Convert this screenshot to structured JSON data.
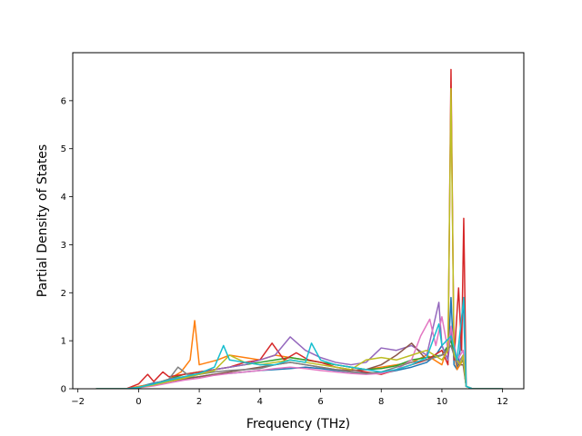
{
  "chart_data": {
    "type": "line",
    "title": "",
    "xlabel": "Frequency (THz)",
    "ylabel": "Partial Density of States",
    "xlim": [
      -2.17,
      12.7
    ],
    "ylim": [
      0,
      7.0
    ],
    "x_ticks": [
      -2,
      0,
      2,
      4,
      6,
      8,
      10,
      12
    ],
    "y_ticks": [
      0,
      1,
      2,
      3,
      4,
      5,
      6
    ],
    "grid": false,
    "legend": "none",
    "palette": [
      "#1f77b4",
      "#ff7f0e",
      "#2ca02c",
      "#d62728",
      "#9467bd",
      "#8c564b",
      "#e377c2",
      "#7f7f7f",
      "#bcbd22",
      "#17becf"
    ],
    "series": [
      {
        "color": "#1f77b4",
        "x": [
          -1.4,
          -0.4,
          0.0,
          0.5,
          1.0,
          1.5,
          2.0,
          2.5,
          3.0,
          3.5,
          4.0,
          4.5,
          5.0,
          5.5,
          6.0,
          6.5,
          7.0,
          7.5,
          8.0,
          8.5,
          9.0,
          9.5,
          9.8,
          10.0,
          10.2,
          10.3,
          10.4,
          10.5,
          10.6,
          10.7,
          10.8,
          11.0,
          12.0
        ],
        "y": [
          0,
          0,
          0.04,
          0.12,
          0.18,
          0.22,
          0.25,
          0.3,
          0.32,
          0.35,
          0.38,
          0.4,
          0.42,
          0.45,
          0.42,
          0.38,
          0.35,
          0.33,
          0.32,
          0.38,
          0.45,
          0.55,
          0.7,
          0.9,
          0.6,
          1.9,
          0.5,
          0.4,
          0.8,
          1.9,
          0.05,
          0,
          0
        ]
      },
      {
        "color": "#ff7f0e",
        "x": [
          -1.4,
          -0.4,
          0.0,
          0.5,
          1.0,
          1.4,
          1.7,
          1.85,
          2.0,
          2.3,
          2.6,
          3.0,
          3.5,
          4.0,
          4.5,
          5.0,
          5.5,
          6.0,
          6.5,
          7.0,
          7.5,
          8.0,
          8.5,
          9.0,
          9.5,
          10.0,
          10.3,
          10.5,
          10.7,
          10.8,
          11.0,
          12.0
        ],
        "y": [
          0,
          0,
          0.05,
          0.1,
          0.2,
          0.35,
          0.6,
          1.42,
          0.5,
          0.55,
          0.6,
          0.7,
          0.65,
          0.6,
          0.7,
          0.65,
          0.6,
          0.55,
          0.5,
          0.45,
          0.4,
          0.45,
          0.5,
          0.55,
          0.7,
          0.5,
          1.1,
          0.4,
          0.6,
          0.05,
          0,
          0
        ]
      },
      {
        "color": "#2ca02c",
        "x": [
          -1.4,
          -0.4,
          0.0,
          0.5,
          1.0,
          1.5,
          2.0,
          2.5,
          3.0,
          3.5,
          4.0,
          4.5,
          5.0,
          5.5,
          6.0,
          6.5,
          7.0,
          7.5,
          8.0,
          8.5,
          9.0,
          9.5,
          10.0,
          10.3,
          10.5,
          10.7,
          10.8,
          11.0,
          12.0
        ],
        "y": [
          0,
          0,
          0.03,
          0.1,
          0.2,
          0.3,
          0.35,
          0.4,
          0.45,
          0.5,
          0.55,
          0.6,
          0.65,
          0.6,
          0.55,
          0.5,
          0.45,
          0.4,
          0.42,
          0.48,
          0.6,
          0.65,
          0.7,
          1.0,
          0.5,
          0.6,
          0.05,
          0,
          0
        ]
      },
      {
        "color": "#d62728",
        "x": [
          -1.4,
          -0.4,
          0.0,
          0.3,
          0.5,
          0.8,
          1.0,
          1.5,
          2.0,
          2.5,
          3.0,
          3.5,
          4.0,
          4.4,
          4.8,
          5.2,
          5.6,
          6.0,
          6.5,
          7.0,
          7.5,
          8.0,
          8.5,
          9.0,
          9.5,
          10.0,
          10.2,
          10.3,
          10.4,
          10.55,
          10.65,
          10.72,
          10.8,
          11.0,
          12.0
        ],
        "y": [
          0,
          0,
          0.1,
          0.3,
          0.15,
          0.35,
          0.25,
          0.3,
          0.35,
          0.4,
          0.45,
          0.55,
          0.6,
          0.95,
          0.6,
          0.75,
          0.6,
          0.55,
          0.45,
          0.4,
          0.35,
          0.3,
          0.4,
          0.5,
          0.6,
          0.8,
          0.5,
          6.65,
          0.6,
          2.1,
          0.8,
          3.55,
          0.05,
          0,
          0
        ]
      },
      {
        "color": "#9467bd",
        "x": [
          -1.4,
          -0.4,
          0.0,
          0.5,
          1.0,
          1.5,
          2.0,
          2.5,
          3.0,
          3.5,
          4.0,
          4.5,
          5.0,
          5.5,
          6.0,
          6.5,
          7.0,
          7.5,
          8.0,
          8.5,
          9.0,
          9.5,
          9.9,
          10.0,
          10.2,
          10.3,
          10.5,
          10.7,
          10.8,
          11.0,
          12.0
        ],
        "y": [
          0,
          0,
          0.03,
          0.1,
          0.2,
          0.25,
          0.3,
          0.4,
          0.45,
          0.5,
          0.6,
          0.7,
          1.08,
          0.8,
          0.65,
          0.55,
          0.5,
          0.55,
          0.85,
          0.8,
          0.9,
          0.7,
          1.8,
          0.9,
          0.6,
          1.2,
          0.5,
          0.7,
          0.05,
          0,
          0
        ]
      },
      {
        "color": "#8c564b",
        "x": [
          -1.4,
          -0.4,
          0.0,
          0.5,
          1.0,
          1.5,
          2.0,
          2.5,
          3.0,
          3.5,
          4.0,
          4.5,
          5.0,
          5.5,
          6.0,
          6.5,
          7.0,
          7.5,
          8.0,
          8.5,
          9.0,
          9.5,
          10.0,
          10.3,
          10.5,
          10.7,
          10.8,
          11.0,
          12.0
        ],
        "y": [
          0,
          0,
          0.02,
          0.08,
          0.15,
          0.2,
          0.25,
          0.3,
          0.35,
          0.4,
          0.45,
          0.5,
          0.55,
          0.5,
          0.45,
          0.4,
          0.38,
          0.4,
          0.5,
          0.7,
          0.95,
          0.6,
          0.7,
          0.9,
          0.5,
          0.5,
          0.05,
          0,
          0
        ]
      },
      {
        "color": "#e377c2",
        "x": [
          -1.4,
          -0.4,
          0.0,
          0.5,
          1.0,
          1.5,
          2.0,
          2.5,
          3.0,
          3.5,
          4.0,
          4.5,
          5.0,
          5.5,
          6.0,
          6.5,
          7.0,
          7.5,
          8.0,
          8.5,
          9.0,
          9.3,
          9.6,
          9.8,
          10.0,
          10.2,
          10.3,
          10.5,
          10.7,
          10.8,
          11.0,
          12.0
        ],
        "y": [
          0,
          0,
          0.02,
          0.06,
          0.12,
          0.18,
          0.22,
          0.28,
          0.32,
          0.35,
          0.38,
          0.42,
          0.45,
          0.42,
          0.38,
          0.35,
          0.32,
          0.3,
          0.32,
          0.4,
          0.6,
          1.1,
          1.45,
          0.9,
          1.5,
          0.8,
          1.3,
          0.6,
          0.8,
          0.05,
          0,
          0
        ]
      },
      {
        "color": "#7f7f7f",
        "x": [
          -1.4,
          -0.4,
          0.0,
          0.5,
          1.0,
          1.3,
          1.6,
          2.0,
          2.5,
          3.0,
          3.5,
          4.0,
          4.5,
          5.0,
          5.5,
          6.0,
          6.5,
          7.0,
          7.5,
          8.0,
          8.5,
          9.0,
          9.5,
          10.0,
          10.3,
          10.5,
          10.7,
          10.8,
          11.0,
          12.0
        ],
        "y": [
          0,
          0,
          0.02,
          0.1,
          0.2,
          0.45,
          0.3,
          0.3,
          0.35,
          0.38,
          0.4,
          0.42,
          0.5,
          0.55,
          0.5,
          0.45,
          0.4,
          0.35,
          0.32,
          0.35,
          0.45,
          0.55,
          0.6,
          0.7,
          0.9,
          0.5,
          0.6,
          0.05,
          0,
          0
        ]
      },
      {
        "color": "#bcbd22",
        "x": [
          -1.4,
          -0.4,
          0.0,
          0.5,
          1.0,
          1.5,
          2.0,
          2.5,
          3.0,
          3.5,
          4.0,
          4.5,
          5.0,
          5.5,
          6.0,
          6.5,
          7.0,
          7.5,
          8.0,
          8.5,
          9.0,
          9.5,
          10.0,
          10.2,
          10.3,
          10.4,
          10.6,
          10.7,
          10.8,
          11.0,
          12.0
        ],
        "y": [
          0,
          0,
          0.03,
          0.08,
          0.15,
          0.22,
          0.3,
          0.38,
          0.7,
          0.55,
          0.5,
          0.55,
          0.6,
          0.55,
          0.5,
          0.45,
          0.4,
          0.6,
          0.65,
          0.6,
          0.7,
          0.8,
          0.6,
          0.8,
          6.25,
          0.7,
          0.5,
          0.7,
          0.05,
          0,
          0
        ]
      },
      {
        "color": "#17becf",
        "x": [
          -1.4,
          -0.4,
          0.0,
          0.5,
          1.0,
          1.5,
          2.0,
          2.5,
          2.8,
          3.0,
          3.5,
          4.0,
          4.5,
          5.0,
          5.5,
          5.7,
          6.0,
          6.5,
          7.0,
          7.5,
          8.0,
          8.5,
          9.0,
          9.5,
          9.9,
          10.0,
          10.3,
          10.5,
          10.72,
          10.8,
          11.0,
          12.0
        ],
        "y": [
          0,
          0,
          0.03,
          0.1,
          0.18,
          0.25,
          0.32,
          0.45,
          0.9,
          0.6,
          0.55,
          0.5,
          0.5,
          0.6,
          0.55,
          0.95,
          0.6,
          0.5,
          0.45,
          0.4,
          0.35,
          0.4,
          0.5,
          0.65,
          1.35,
          0.9,
          1.1,
          0.6,
          1.9,
          0.05,
          0,
          0
        ]
      }
    ]
  }
}
